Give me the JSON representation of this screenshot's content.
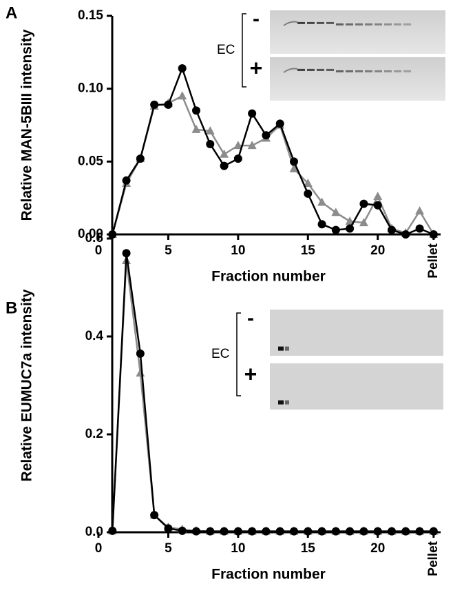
{
  "chart_data": [
    {
      "type": "line",
      "panel": "A",
      "y_label": "Relative MAN-5BIII intensity",
      "x_label": "Fraction number",
      "xlim": [
        0,
        24.5
      ],
      "xticks": [
        0,
        5,
        10,
        15,
        20,
        {
          "value": 24,
          "label": "Pellet"
        }
      ],
      "ylim": [
        0,
        0.15
      ],
      "yticks": [
        {
          "value": 0,
          "label": "0.00"
        },
        {
          "value": 0.05,
          "label": "0.05"
        },
        {
          "value": 0.1,
          "label": "0.10"
        },
        {
          "value": 0.15,
          "label": "0.15"
        }
      ],
      "x": [
        1,
        2,
        3,
        4,
        5,
        6,
        7,
        8,
        9,
        10,
        11,
        12,
        13,
        14,
        15,
        16,
        17,
        18,
        19,
        20,
        21,
        22,
        23,
        24
      ],
      "series": [
        {
          "color": "#8c8c8c",
          "marker": "triangle",
          "values": [
            0,
            0.035,
            0.052,
            0.088,
            0.09,
            0.095,
            0.072,
            0.071,
            0.055,
            0.061,
            0.061,
            0.066,
            0.075,
            0.045,
            0.035,
            0.022,
            0.015,
            0.009,
            0.008,
            0.026,
            0.004,
            0.001,
            0.016,
            0
          ]
        },
        {
          "color": "#000000",
          "marker": "circle",
          "values": [
            0,
            0.037,
            0.052,
            0.089,
            0.089,
            0.114,
            0.085,
            0.062,
            0.047,
            0.052,
            0.083,
            0.068,
            0.076,
            0.05,
            0.028,
            0.007,
            0.003,
            0.004,
            0.021,
            0.02,
            0.003,
            0,
            0.004,
            0
          ]
        }
      ],
      "inset": {
        "label": "EC",
        "rows": [
          "-",
          "+"
        ]
      }
    },
    {
      "type": "line",
      "panel": "B",
      "y_label": "Relative EUMUC7a intensity",
      "x_label": "Fraction number",
      "xlim": [
        0,
        24.5
      ],
      "xticks": [
        0,
        5,
        10,
        15,
        20,
        {
          "value": 24,
          "label": "Pellet"
        }
      ],
      "ylim": [
        0,
        0.6
      ],
      "yticks": [
        {
          "value": 0,
          "label": "0.0"
        },
        {
          "value": 0.2,
          "label": "0.2"
        },
        {
          "value": 0.4,
          "label": "0.4"
        },
        {
          "value": 0.6,
          "label": "0.6"
        }
      ],
      "x": [
        1,
        2,
        3,
        4,
        5,
        6,
        7,
        8,
        9,
        10,
        11,
        12,
        13,
        14,
        15,
        16,
        17,
        18,
        19,
        20,
        21,
        22,
        23,
        24
      ],
      "series": [
        {
          "color": "#8c8c8c",
          "marker": "triangle",
          "values": [
            0.003,
            0.555,
            0.325,
            0.035,
            0.01,
            0.006,
            0.003,
            0.002,
            0.002,
            0.002,
            0.002,
            0.002,
            0.002,
            0.002,
            0.002,
            0.002,
            0.002,
            0.002,
            0.002,
            0.002,
            0.002,
            0.002,
            0.002,
            0.002
          ]
        },
        {
          "color": "#000000",
          "marker": "circle",
          "values": [
            0.003,
            0.57,
            0.365,
            0.035,
            0.008,
            0.003,
            0.002,
            0.002,
            0.002,
            0.002,
            0.002,
            0.002,
            0.002,
            0.002,
            0.002,
            0.002,
            0.002,
            0.002,
            0.002,
            0.002,
            0.002,
            0.002,
            0.002,
            0.002
          ]
        }
      ],
      "inset": {
        "label": "EC",
        "rows": [
          "-",
          "+"
        ]
      }
    }
  ]
}
